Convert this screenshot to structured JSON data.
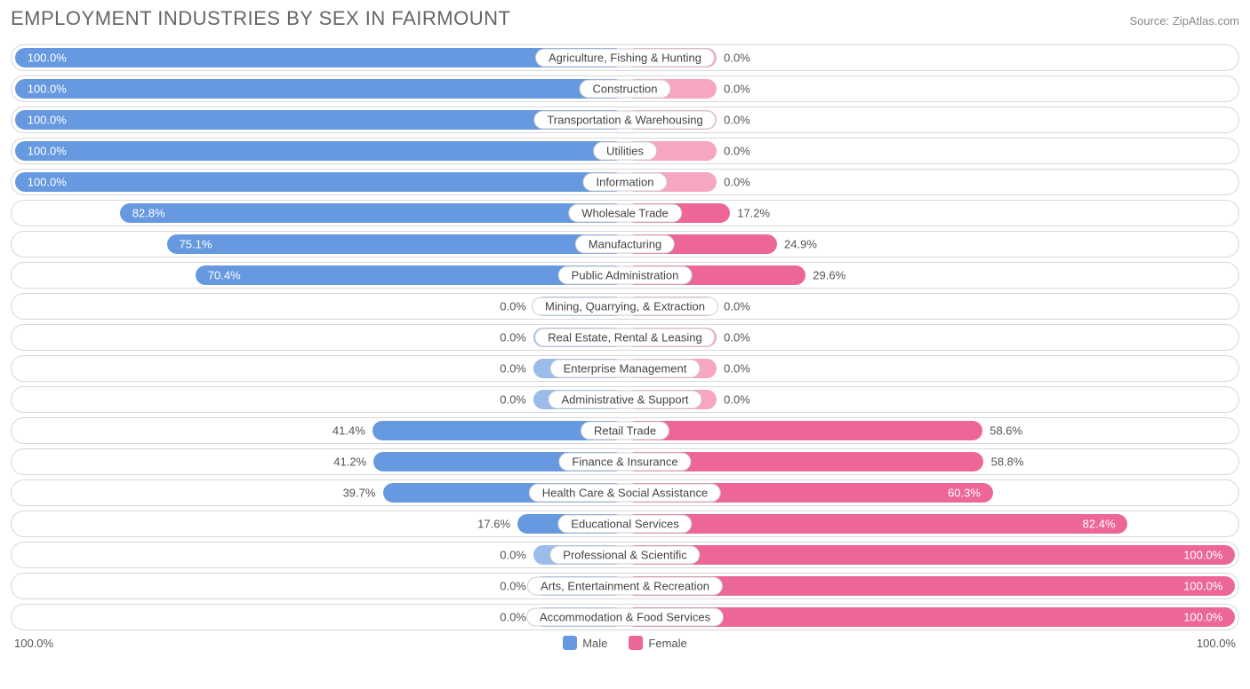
{
  "title": "EMPLOYMENT INDUSTRIES BY SEX IN FAIRMOUNT",
  "source": "Source: ZipAtlas.com",
  "chart": {
    "type": "diverging-bar",
    "male_color": "#6699e0",
    "male_color_light": "#9bbcea",
    "female_color": "#ec6697",
    "female_color_light": "#f6a5c2",
    "border_color": "#d8d8d8",
    "background_color": "#ffffff",
    "label_fontsize": 13,
    "title_fontsize": 22,
    "min_bar_pct": 15,
    "axis_left": "100.0%",
    "axis_right": "100.0%",
    "legend": {
      "male": "Male",
      "female": "Female"
    },
    "rows": [
      {
        "category": "Agriculture, Fishing & Hunting",
        "male": 100.0,
        "female": 0.0
      },
      {
        "category": "Construction",
        "male": 100.0,
        "female": 0.0
      },
      {
        "category": "Transportation & Warehousing",
        "male": 100.0,
        "female": 0.0
      },
      {
        "category": "Utilities",
        "male": 100.0,
        "female": 0.0
      },
      {
        "category": "Information",
        "male": 100.0,
        "female": 0.0
      },
      {
        "category": "Wholesale Trade",
        "male": 82.8,
        "female": 17.2
      },
      {
        "category": "Manufacturing",
        "male": 75.1,
        "female": 24.9
      },
      {
        "category": "Public Administration",
        "male": 70.4,
        "female": 29.6
      },
      {
        "category": "Mining, Quarrying, & Extraction",
        "male": 0.0,
        "female": 0.0
      },
      {
        "category": "Real Estate, Rental & Leasing",
        "male": 0.0,
        "female": 0.0
      },
      {
        "category": "Enterprise Management",
        "male": 0.0,
        "female": 0.0
      },
      {
        "category": "Administrative & Support",
        "male": 0.0,
        "female": 0.0
      },
      {
        "category": "Retail Trade",
        "male": 41.4,
        "female": 58.6
      },
      {
        "category": "Finance & Insurance",
        "male": 41.2,
        "female": 58.8
      },
      {
        "category": "Health Care & Social Assistance",
        "male": 39.7,
        "female": 60.3
      },
      {
        "category": "Educational Services",
        "male": 17.6,
        "female": 82.4
      },
      {
        "category": "Professional & Scientific",
        "male": 0.0,
        "female": 100.0
      },
      {
        "category": "Arts, Entertainment & Recreation",
        "male": 0.0,
        "female": 100.0
      },
      {
        "category": "Accommodation & Food Services",
        "male": 0.0,
        "female": 100.0
      }
    ]
  }
}
